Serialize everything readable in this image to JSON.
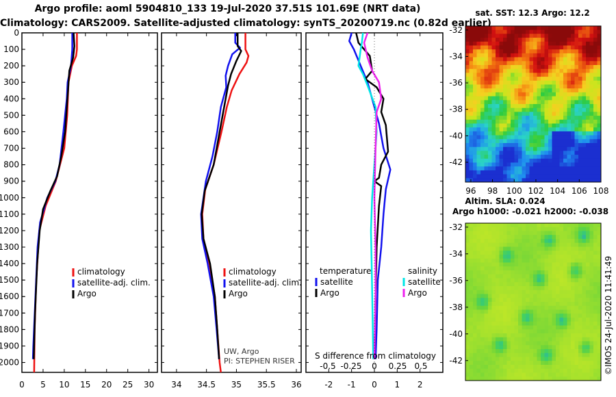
{
  "header": {
    "title_line1": "Argo profile: aoml 5904810_133 19-Jul-2020 37.51S 101.69E (NRT data)",
    "title_line2": "Climatology: CARS2009. Satellite-adjusted climatology: synTS_20200719.nc (0.82d earlier)"
  },
  "colors": {
    "climatology": "#ee1111",
    "satellite": "#1111ee",
    "argo": "#000000",
    "salinity_satellite": "#00e6e6",
    "salinity_argo": "#ee22ee"
  },
  "depth_axis": {
    "ticks": [
      "0",
      "100",
      "200",
      "300",
      "400",
      "500",
      "600",
      "700",
      "800",
      "900",
      "1000",
      "1100",
      "1200",
      "1300",
      "1400",
      "1500",
      "1600",
      "1700",
      "1800",
      "1900",
      "2000"
    ],
    "ylim": [
      0,
      2060
    ]
  },
  "chart_data": [
    {
      "id": "temperature-profile",
      "type": "line",
      "ylabel": "depth",
      "xlim": [
        0,
        32
      ],
      "ylim": [
        0,
        2060
      ],
      "xticks": [
        0,
        5,
        10,
        15,
        20,
        25,
        30
      ],
      "xtick_labels": [
        "0",
        "5",
        "10",
        "15",
        "20",
        "25",
        "30"
      ],
      "legend": {
        "position": "bottom-right",
        "entries": [
          "climatology",
          "satellite-adj. clim.",
          "Argo"
        ]
      },
      "series": [
        {
          "name": "climatology",
          "color": "#ee1111",
          "points": [
            [
              13.0,
              0
            ],
            [
              13.0,
              100
            ],
            [
              12.8,
              140
            ],
            [
              11.8,
              200
            ],
            [
              11.0,
              300
            ],
            [
              10.7,
              500
            ],
            [
              10.0,
              700
            ],
            [
              8.0,
              900
            ],
            [
              5.6,
              1050
            ],
            [
              4.1,
              1200
            ],
            [
              3.4,
              1500
            ],
            [
              3.0,
              1800
            ],
            [
              2.9,
              2060
            ]
          ]
        },
        {
          "name": "satellite-adj. clim.",
          "color": "#1111ee",
          "points": [
            [
              11.9,
              0
            ],
            [
              11.9,
              60
            ],
            [
              11.9,
              100
            ],
            [
              11.6,
              200
            ],
            [
              10.8,
              300
            ],
            [
              10.6,
              400
            ],
            [
              10.2,
              500
            ],
            [
              9.8,
              600
            ],
            [
              8.9,
              800
            ],
            [
              7.9,
              900
            ],
            [
              6.0,
              1000
            ],
            [
              4.3,
              1150
            ],
            [
              3.7,
              1300
            ],
            [
              3.2,
              1600
            ],
            [
              2.7,
              1900
            ],
            [
              2.6,
              1980
            ]
          ]
        },
        {
          "name": "Argo",
          "color": "#000000",
          "points": [
            [
              12.2,
              0
            ],
            [
              12.4,
              80
            ],
            [
              12.1,
              150
            ],
            [
              11.2,
              230
            ],
            [
              10.9,
              350
            ],
            [
              10.6,
              450
            ],
            [
              10.2,
              600
            ],
            [
              9.3,
              750
            ],
            [
              8.3,
              870
            ],
            [
              6.7,
              960
            ],
            [
              5.0,
              1070
            ],
            [
              4.2,
              1200
            ],
            [
              3.6,
              1400
            ],
            [
              3.1,
              1700
            ],
            [
              2.8,
              1980
            ]
          ]
        }
      ]
    },
    {
      "id": "salinity-profile",
      "type": "line",
      "xlim": [
        33.75,
        36.08
      ],
      "ylim": [
        0,
        2060
      ],
      "xticks": [
        34,
        34.5,
        35,
        35.5,
        36
      ],
      "xtick_labels": [
        "34",
        "34.5",
        "35",
        "35.5",
        "36"
      ],
      "legend": {
        "position": "bottom-right",
        "entries": [
          "climatology",
          "satellite-adj. clim.",
          "Argo"
        ]
      },
      "annotations": [
        "UW, Argo",
        "PI: STEPHEN RISER"
      ],
      "series": [
        {
          "name": "climatology",
          "color": "#ee1111",
          "points": [
            [
              35.15,
              0
            ],
            [
              35.15,
              100
            ],
            [
              35.2,
              140
            ],
            [
              35.17,
              180
            ],
            [
              35.05,
              250
            ],
            [
              34.92,
              350
            ],
            [
              34.84,
              450
            ],
            [
              34.75,
              600
            ],
            [
              34.62,
              800
            ],
            [
              34.48,
              950
            ],
            [
              34.43,
              1100
            ],
            [
              34.45,
              1250
            ],
            [
              34.55,
              1400
            ],
            [
              34.64,
              1600
            ],
            [
              34.68,
              1800
            ],
            [
              34.72,
              2000
            ],
            [
              34.74,
              2060
            ]
          ]
        },
        {
          "name": "satellite-adj. clim.",
          "color": "#1111ee",
          "points": [
            [
              34.98,
              0
            ],
            [
              34.98,
              60
            ],
            [
              35.06,
              90
            ],
            [
              34.93,
              130
            ],
            [
              34.86,
              200
            ],
            [
              34.82,
              260
            ],
            [
              34.83,
              330
            ],
            [
              34.74,
              450
            ],
            [
              34.68,
              600
            ],
            [
              34.6,
              750
            ],
            [
              34.49,
              900
            ],
            [
              34.41,
              1100
            ],
            [
              34.43,
              1250
            ],
            [
              34.52,
              1400
            ],
            [
              34.62,
              1600
            ],
            [
              34.67,
              1800
            ],
            [
              34.71,
              1980
            ]
          ]
        },
        {
          "name": "Argo",
          "color": "#000000",
          "points": [
            [
              35.02,
              0
            ],
            [
              35.02,
              80
            ],
            [
              35.08,
              110
            ],
            [
              35.0,
              170
            ],
            [
              34.91,
              250
            ],
            [
              34.86,
              320
            ],
            [
              34.81,
              420
            ],
            [
              34.72,
              600
            ],
            [
              34.62,
              800
            ],
            [
              34.47,
              960
            ],
            [
              34.42,
              1100
            ],
            [
              34.45,
              1250
            ],
            [
              34.56,
              1400
            ],
            [
              34.64,
              1600
            ],
            [
              34.68,
              1800
            ],
            [
              34.71,
              1980
            ]
          ]
        }
      ]
    },
    {
      "id": "difference-profile",
      "type": "line",
      "xlim": [
        -3.0,
        3.0
      ],
      "ylim": [
        0,
        2060
      ],
      "xticks": [
        -2,
        -1,
        0,
        1,
        2
      ],
      "xtick_labels": [
        "-2",
        "-1",
        "0",
        "1",
        "2"
      ],
      "sub_ticks": [
        -0.5,
        -0.25,
        0,
        0.25,
        0.5
      ],
      "sub_tick_labels": [
        "-0.5",
        "-0.25",
        "0",
        "0.25",
        "0.5"
      ],
      "xlabel": "S difference from climatology",
      "legend": {
        "position": "bottom",
        "temperature_title": "temperature",
        "salinity_title": "salinity",
        "entries": [
          "satellite",
          "Argo",
          "satellite",
          "Argo"
        ]
      },
      "series": [
        {
          "name": "temperature satellite",
          "color": "#1111ee",
          "points": [
            [
              -1.0,
              0
            ],
            [
              -1.1,
              50
            ],
            [
              -0.9,
              100
            ],
            [
              -0.6,
              200
            ],
            [
              -0.3,
              300
            ],
            [
              0.0,
              450
            ],
            [
              0.2,
              550
            ],
            [
              0.4,
              700
            ],
            [
              0.7,
              830
            ],
            [
              0.5,
              950
            ],
            [
              0.4,
              1100
            ],
            [
              0.3,
              1300
            ],
            [
              0.15,
              1500
            ],
            [
              0.1,
              1800
            ],
            [
              0.05,
              1980
            ]
          ]
        },
        {
          "name": "temperature Argo",
          "color": "#000000",
          "points": [
            [
              -0.8,
              0
            ],
            [
              -0.7,
              60
            ],
            [
              -0.2,
              140
            ],
            [
              -0.1,
              230
            ],
            [
              -0.4,
              280
            ],
            [
              0.1,
              330
            ],
            [
              0.4,
              400
            ],
            [
              0.3,
              480
            ],
            [
              0.5,
              560
            ],
            [
              0.6,
              720
            ],
            [
              0.3,
              800
            ],
            [
              0.2,
              880
            ],
            [
              0.0,
              900
            ],
            [
              0.3,
              930
            ],
            [
              0.2,
              1050
            ],
            [
              0.1,
              1300
            ],
            [
              0.05,
              1600
            ],
            [
              0.0,
              1980
            ]
          ]
        },
        {
          "name": "salinity satellite",
          "color": "#00e6e6",
          "points": [
            [
              -0.5,
              0
            ],
            [
              -0.55,
              60
            ],
            [
              -0.6,
              100
            ],
            [
              -0.7,
              200
            ],
            [
              -0.5,
              250
            ],
            [
              -0.3,
              320
            ],
            [
              0.05,
              450
            ],
            [
              0.1,
              600
            ],
            [
              0.0,
              800
            ],
            [
              -0.1,
              1000
            ],
            [
              -0.15,
              1200
            ],
            [
              -0.12,
              1400
            ],
            [
              -0.08,
              1700
            ],
            [
              -0.05,
              1980
            ]
          ]
        },
        {
          "name": "salinity Argo",
          "color": "#ee22ee",
          "points": [
            [
              -0.3,
              0
            ],
            [
              -0.45,
              60
            ],
            [
              -0.3,
              150
            ],
            [
              -0.1,
              230
            ],
            [
              0.2,
              300
            ],
            [
              0.3,
              400
            ],
            [
              0.1,
              480
            ],
            [
              0.05,
              700
            ],
            [
              0.0,
              1000
            ],
            [
              0.05,
              1300
            ],
            [
              0.05,
              1600
            ],
            [
              0.0,
              1980
            ]
          ]
        }
      ]
    },
    {
      "id": "sst-map",
      "type": "heatmap",
      "title": "sat. SST: 12.3 Argo: 12.2",
      "x_ticks": [
        "96",
        "98",
        "100",
        "102",
        "104",
        "106",
        "108"
      ],
      "y_ticks": [
        "-32",
        "-34",
        "-36",
        "-38",
        "-40",
        "-42"
      ],
      "x_range": [
        95.5,
        108.0
      ],
      "y_range": [
        -43.5,
        -31.7
      ],
      "color_scale": [
        "#1b2fd0",
        "#1f8ef0",
        "#2ad3c8",
        "#2ecc40",
        "#c8e61e",
        "#f5d020",
        "#f57a10",
        "#d21010",
        "#8a0a0a"
      ]
    },
    {
      "id": "sla-map",
      "type": "heatmap",
      "title_line1": "Altim. SLA: 0.024",
      "title_line2": "Argo h1000: -0.021 h2000: -0.038",
      "y_ticks": [
        "-32",
        "-34",
        "-36",
        "-38",
        "-40",
        "-42"
      ],
      "y_range": [
        -43.5,
        -31.7
      ],
      "side_label": "©IMOS 24-Jul-2020 11:41:49"
    }
  ]
}
